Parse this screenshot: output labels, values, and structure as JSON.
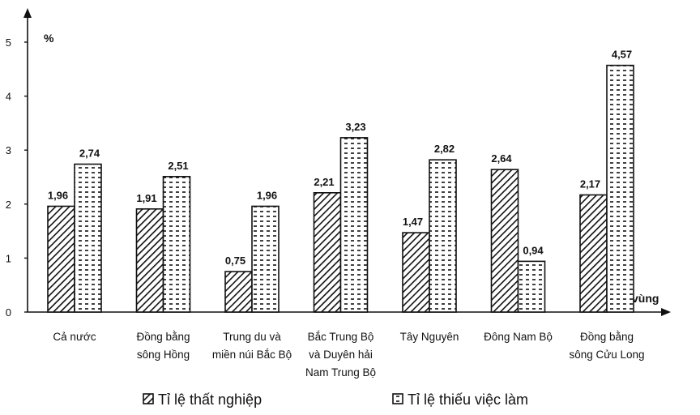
{
  "chart_data": {
    "type": "bar",
    "title": "",
    "ylabel": "%",
    "xlabel": "vùng",
    "ylim": [
      0,
      5
    ],
    "yticks": [
      0,
      1,
      2,
      3,
      4,
      5
    ],
    "categories": [
      [
        "Cả nước"
      ],
      [
        "Đồng bằng",
        "sông Hồng"
      ],
      [
        "Trung du và",
        "miền núi Bắc Bộ"
      ],
      [
        "Bắc Trung Bộ",
        "và Duyên hải",
        "Nam Trung Bộ"
      ],
      [
        "Tây Nguyên"
      ],
      [
        "Đông Nam Bộ"
      ],
      [
        "Đồng bằng",
        "sông Cửu Long"
      ]
    ],
    "series": [
      {
        "name": "Tỉ lệ thất nghiệp",
        "pattern": "diagonal-hatch",
        "values": [
          1.96,
          1.91,
          0.75,
          2.21,
          1.47,
          2.64,
          2.17
        ],
        "labels": [
          "1,96",
          "1,91",
          "0,75",
          "2,21",
          "1,47",
          "2,64",
          "2,17"
        ]
      },
      {
        "name": "Tỉ lệ thiếu việc làm",
        "pattern": "dashes",
        "values": [
          2.74,
          2.51,
          1.96,
          3.23,
          2.82,
          0.94,
          4.57
        ],
        "labels": [
          "2,74",
          "2,51",
          "1,96",
          "3,23",
          "2,82",
          "0,94",
          "4,57"
        ]
      }
    ],
    "grid": false,
    "legend_position": "bottom",
    "colors": {
      "ink": "#111111",
      "background": "#ffffff"
    }
  }
}
